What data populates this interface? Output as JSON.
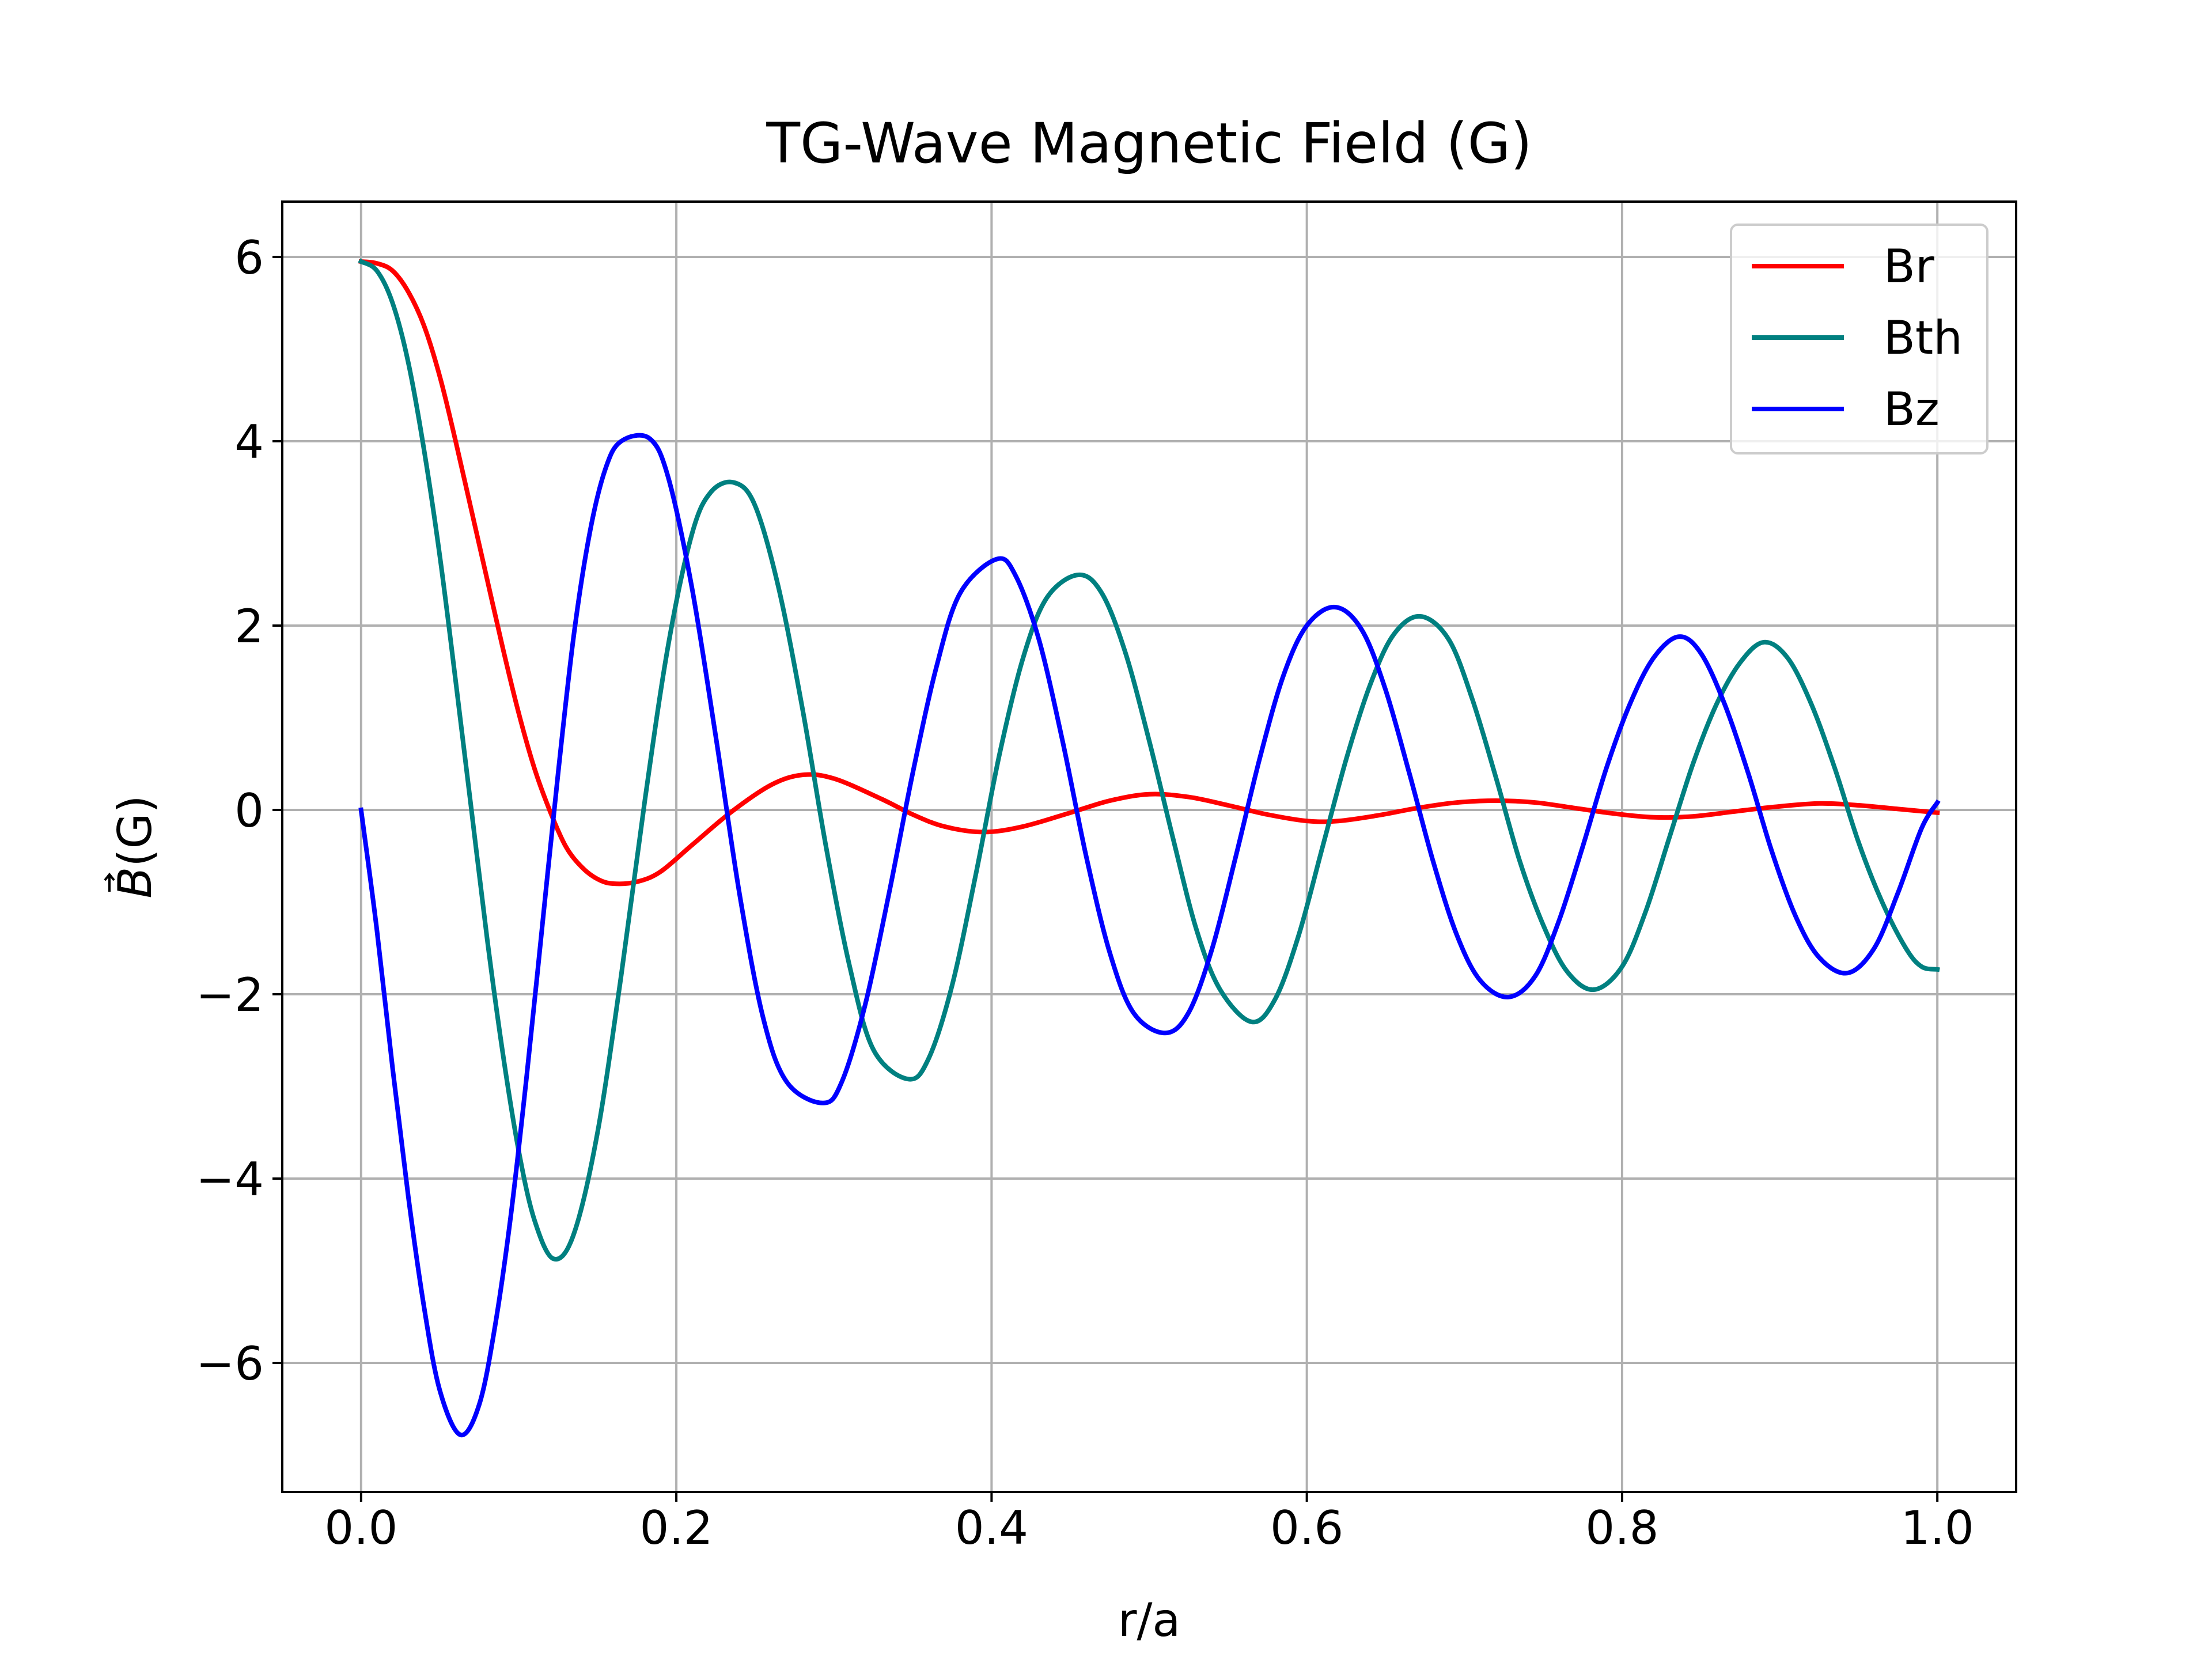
{
  "chart_data": {
    "type": "line",
    "title": "TG-Wave Magnetic Field (G)",
    "xlabel": "r/a",
    "ylabel_symbol": "B",
    "ylabel_unit": "(G)",
    "xlim": [
      -0.05,
      1.05
    ],
    "ylim": [
      -7.4,
      6.6
    ],
    "xticks": [
      0.0,
      0.2,
      0.4,
      0.6,
      0.8,
      1.0
    ],
    "xtick_labels": [
      "0.0",
      "0.2",
      "0.4",
      "0.6",
      "0.8",
      "1.0"
    ],
    "yticks": [
      -6,
      -4,
      -2,
      0,
      2,
      4,
      6
    ],
    "ytick_labels": [
      "−6",
      "−4",
      "−2",
      "0",
      "2",
      "4",
      "6"
    ],
    "grid": true,
    "legend_position": "upper right",
    "series": [
      {
        "name": "Br",
        "color": "#ff0000",
        "points": [
          [
            0.0,
            5.95
          ],
          [
            0.01,
            5.93
          ],
          [
            0.02,
            5.85
          ],
          [
            0.03,
            5.62
          ],
          [
            0.04,
            5.25
          ],
          [
            0.05,
            4.7
          ],
          [
            0.06,
            4.0
          ],
          [
            0.07,
            3.25
          ],
          [
            0.08,
            2.5
          ],
          [
            0.09,
            1.75
          ],
          [
            0.1,
            1.05
          ],
          [
            0.11,
            0.45
          ],
          [
            0.12,
            -0.02
          ],
          [
            0.13,
            -0.4
          ],
          [
            0.14,
            -0.62
          ],
          [
            0.15,
            -0.75
          ],
          [
            0.16,
            -0.8
          ],
          [
            0.175,
            -0.78
          ],
          [
            0.19,
            -0.67
          ],
          [
            0.21,
            -0.38
          ],
          [
            0.235,
            -0.02
          ],
          [
            0.26,
            0.27
          ],
          [
            0.28,
            0.38
          ],
          [
            0.3,
            0.34
          ],
          [
            0.33,
            0.12
          ],
          [
            0.35,
            -0.05
          ],
          [
            0.37,
            -0.18
          ],
          [
            0.395,
            -0.24
          ],
          [
            0.42,
            -0.18
          ],
          [
            0.45,
            -0.03
          ],
          [
            0.475,
            0.1
          ],
          [
            0.5,
            0.17
          ],
          [
            0.525,
            0.14
          ],
          [
            0.55,
            0.05
          ],
          [
            0.575,
            -0.05
          ],
          [
            0.6,
            -0.12
          ],
          [
            0.62,
            -0.12
          ],
          [
            0.645,
            -0.06
          ],
          [
            0.67,
            0.02
          ],
          [
            0.695,
            0.08
          ],
          [
            0.72,
            0.1
          ],
          [
            0.745,
            0.08
          ],
          [
            0.77,
            0.02
          ],
          [
            0.795,
            -0.04
          ],
          [
            0.82,
            -0.08
          ],
          [
            0.845,
            -0.07
          ],
          [
            0.87,
            -0.02
          ],
          [
            0.895,
            0.03
          ],
          [
            0.925,
            0.07
          ],
          [
            0.95,
            0.05
          ],
          [
            0.975,
            0.01
          ],
          [
            1.0,
            -0.03
          ]
        ]
      },
      {
        "name": "Bth",
        "color": "#008080",
        "points": [
          [
            0.0,
            5.95
          ],
          [
            0.01,
            5.85
          ],
          [
            0.02,
            5.5
          ],
          [
            0.03,
            4.85
          ],
          [
            0.04,
            3.9
          ],
          [
            0.05,
            2.75
          ],
          [
            0.06,
            1.4
          ],
          [
            0.07,
            0.0
          ],
          [
            0.08,
            -1.4
          ],
          [
            0.09,
            -2.65
          ],
          [
            0.1,
            -3.7
          ],
          [
            0.11,
            -4.45
          ],
          [
            0.122,
            -4.87
          ],
          [
            0.135,
            -4.6
          ],
          [
            0.15,
            -3.5
          ],
          [
            0.165,
            -1.8
          ],
          [
            0.18,
            0.1
          ],
          [
            0.195,
            1.8
          ],
          [
            0.21,
            3.0
          ],
          [
            0.222,
            3.45
          ],
          [
            0.237,
            3.55
          ],
          [
            0.25,
            3.3
          ],
          [
            0.265,
            2.4
          ],
          [
            0.28,
            1.1
          ],
          [
            0.295,
            -0.4
          ],
          [
            0.31,
            -1.7
          ],
          [
            0.325,
            -2.6
          ],
          [
            0.347,
            -2.92
          ],
          [
            0.36,
            -2.7
          ],
          [
            0.375,
            -1.9
          ],
          [
            0.39,
            -0.7
          ],
          [
            0.405,
            0.6
          ],
          [
            0.42,
            1.65
          ],
          [
            0.435,
            2.3
          ],
          [
            0.455,
            2.55
          ],
          [
            0.47,
            2.35
          ],
          [
            0.485,
            1.7
          ],
          [
            0.5,
            0.75
          ],
          [
            0.515,
            -0.3
          ],
          [
            0.53,
            -1.3
          ],
          [
            0.545,
            -1.95
          ],
          [
            0.565,
            -2.3
          ],
          [
            0.58,
            -2.05
          ],
          [
            0.595,
            -1.35
          ],
          [
            0.61,
            -0.4
          ],
          [
            0.625,
            0.55
          ],
          [
            0.64,
            1.35
          ],
          [
            0.655,
            1.9
          ],
          [
            0.672,
            2.1
          ],
          [
            0.69,
            1.85
          ],
          [
            0.705,
            1.2
          ],
          [
            0.72,
            0.35
          ],
          [
            0.735,
            -0.55
          ],
          [
            0.75,
            -1.25
          ],
          [
            0.765,
            -1.75
          ],
          [
            0.782,
            -1.95
          ],
          [
            0.8,
            -1.7
          ],
          [
            0.815,
            -1.1
          ],
          [
            0.83,
            -0.3
          ],
          [
            0.845,
            0.5
          ],
          [
            0.86,
            1.15
          ],
          [
            0.875,
            1.6
          ],
          [
            0.89,
            1.82
          ],
          [
            0.905,
            1.65
          ],
          [
            0.92,
            1.15
          ],
          [
            0.935,
            0.45
          ],
          [
            0.95,
            -0.35
          ],
          [
            0.965,
            -1.0
          ],
          [
            0.98,
            -1.5
          ],
          [
            0.99,
            -1.7
          ],
          [
            1.0,
            -1.73
          ]
        ]
      },
      {
        "name": "Bz",
        "color": "#0000ff",
        "points": [
          [
            0.0,
            0.0
          ],
          [
            0.01,
            -1.3
          ],
          [
            0.02,
            -2.8
          ],
          [
            0.03,
            -4.2
          ],
          [
            0.04,
            -5.4
          ],
          [
            0.05,
            -6.3
          ],
          [
            0.063,
            -6.78
          ],
          [
            0.075,
            -6.45
          ],
          [
            0.085,
            -5.6
          ],
          [
            0.095,
            -4.4
          ],
          [
            0.105,
            -2.9
          ],
          [
            0.115,
            -1.25
          ],
          [
            0.125,
            0.4
          ],
          [
            0.135,
            1.9
          ],
          [
            0.145,
            3.0
          ],
          [
            0.155,
            3.7
          ],
          [
            0.165,
            4.0
          ],
          [
            0.183,
            4.03
          ],
          [
            0.195,
            3.6
          ],
          [
            0.21,
            2.4
          ],
          [
            0.225,
            0.8
          ],
          [
            0.24,
            -0.9
          ],
          [
            0.255,
            -2.25
          ],
          [
            0.27,
            -2.95
          ],
          [
            0.293,
            -3.18
          ],
          [
            0.305,
            -2.95
          ],
          [
            0.32,
            -2.1
          ],
          [
            0.335,
            -0.9
          ],
          [
            0.35,
            0.4
          ],
          [
            0.365,
            1.55
          ],
          [
            0.38,
            2.35
          ],
          [
            0.403,
            2.72
          ],
          [
            0.415,
            2.55
          ],
          [
            0.43,
            1.85
          ],
          [
            0.445,
            0.75
          ],
          [
            0.46,
            -0.5
          ],
          [
            0.475,
            -1.55
          ],
          [
            0.49,
            -2.2
          ],
          [
            0.51,
            -2.42
          ],
          [
            0.525,
            -2.2
          ],
          [
            0.54,
            -1.5
          ],
          [
            0.555,
            -0.5
          ],
          [
            0.57,
            0.55
          ],
          [
            0.585,
            1.45
          ],
          [
            0.6,
            2.0
          ],
          [
            0.618,
            2.2
          ],
          [
            0.635,
            1.95
          ],
          [
            0.65,
            1.3
          ],
          [
            0.665,
            0.4
          ],
          [
            0.68,
            -0.55
          ],
          [
            0.695,
            -1.35
          ],
          [
            0.71,
            -1.85
          ],
          [
            0.728,
            -2.03
          ],
          [
            0.745,
            -1.8
          ],
          [
            0.76,
            -1.2
          ],
          [
            0.775,
            -0.4
          ],
          [
            0.79,
            0.45
          ],
          [
            0.805,
            1.15
          ],
          [
            0.82,
            1.65
          ],
          [
            0.836,
            1.88
          ],
          [
            0.85,
            1.7
          ],
          [
            0.865,
            1.15
          ],
          [
            0.88,
            0.4
          ],
          [
            0.895,
            -0.45
          ],
          [
            0.91,
            -1.15
          ],
          [
            0.925,
            -1.6
          ],
          [
            0.943,
            -1.77
          ],
          [
            0.96,
            -1.5
          ],
          [
            0.975,
            -0.9
          ],
          [
            0.99,
            -0.2
          ],
          [
            1.0,
            0.08
          ]
        ]
      }
    ]
  }
}
